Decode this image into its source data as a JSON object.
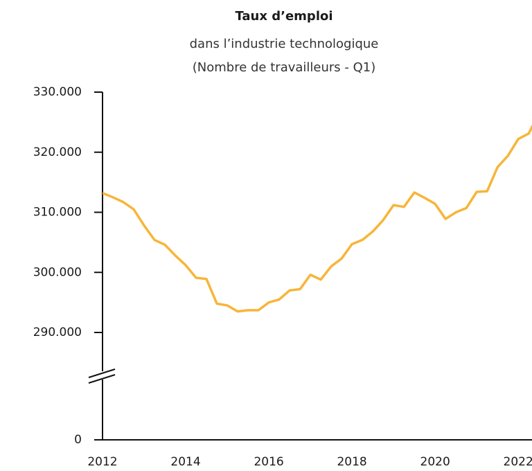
{
  "chart_data": {
    "type": "line",
    "title": "Taux d’emploi",
    "subtitle": "dans l’industrie technologique",
    "subtitle2": "(Nombre de travailleurs - Q1)",
    "x": [
      2012,
      2012.25,
      2012.5,
      2012.75,
      2013,
      2013.25,
      2013.5,
      2013.75,
      2014,
      2014.25,
      2014.5,
      2014.75,
      2015,
      2015.25,
      2015.5,
      2015.75,
      2016,
      2016.25,
      2016.5,
      2016.75,
      2017,
      2017.25,
      2017.5,
      2017.75,
      2018,
      2018.25,
      2018.5,
      2018.75,
      2019,
      2019.25,
      2019.5,
      2019.75,
      2020,
      2020.25,
      2020.5,
      2020.75,
      2021,
      2021.25,
      2021.5,
      2021.75,
      2022,
      2022.25,
      2022.5
    ],
    "series": [
      {
        "color": "#f7b538",
        "values": [
          313200,
          312500,
          311700,
          310500,
          307800,
          305400,
          304600,
          302800,
          301200,
          299100,
          298900,
          294800,
          294500,
          293500,
          293700,
          293700,
          295000,
          295500,
          297000,
          297200,
          299600,
          298800,
          301000,
          302300,
          304700,
          305400,
          306800,
          308700,
          311200,
          310900,
          313300,
          312400,
          311400,
          308900,
          310000,
          310700,
          313400,
          313500,
          317500,
          319400,
          322200,
          323100,
          326500
        ]
      }
    ],
    "xlim": [
      2012,
      2022.33
    ],
    "xticks": [
      2012,
      2014,
      2016,
      2018,
      2020,
      2022
    ],
    "ylim": [
      0,
      330000
    ],
    "y_break": [
      0,
      290000
    ],
    "yticks": [
      0,
      {
        "value": 290000,
        "label": "290.000"
      },
      {
        "value": 300000,
        "label": "300.000"
      },
      {
        "value": 310000,
        "label": "310.000"
      },
      {
        "value": 320000,
        "label": "320.000"
      },
      {
        "value": 330000,
        "label": "330.000"
      }
    ],
    "grid": false
  }
}
